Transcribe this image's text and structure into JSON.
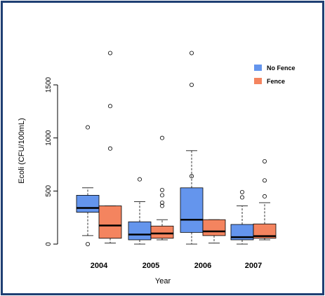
{
  "chart_data": {
    "type": "box",
    "xlabel": "Year",
    "ylabel": "Ecoli (CFU/100mL)",
    "ylim": [
      0,
      1800
    ],
    "yticks": [
      0,
      500,
      1000,
      1500
    ],
    "categories": [
      "2004",
      "2005",
      "2006",
      "2007"
    ],
    "series": [
      {
        "name": "No Fence",
        "color": "#6495ed",
        "boxes": [
          {
            "category": "2004",
            "whisker_low": 80,
            "q1": 300,
            "median": 340,
            "q3": 460,
            "whisker_high": 530,
            "outliers": [
              0,
              1100
            ]
          },
          {
            "category": "2005",
            "whisker_low": 0,
            "q1": 40,
            "median": 90,
            "q3": 210,
            "whisker_high": 400,
            "outliers": [
              610
            ]
          },
          {
            "category": "2006",
            "whisker_low": 0,
            "q1": 110,
            "median": 230,
            "q3": 530,
            "whisker_high": 880,
            "outliers": [
              640,
              1500,
              1800
            ]
          },
          {
            "category": "2007",
            "whisker_low": 0,
            "q1": 40,
            "median": 65,
            "q3": 185,
            "whisker_high": 360,
            "outliers": [
              440,
              490
            ]
          }
        ]
      },
      {
        "name": "Fence",
        "color": "#f4845f",
        "boxes": [
          {
            "category": "2004",
            "whisker_low": 10,
            "q1": 55,
            "median": 175,
            "q3": 360,
            "whisker_high": 360,
            "outliers": [
              900,
              1300,
              1800
            ]
          },
          {
            "category": "2005",
            "whisker_low": 40,
            "q1": 55,
            "median": 100,
            "q3": 170,
            "whisker_high": 230,
            "outliers": [
              360,
              390,
              460,
              510,
              1000
            ]
          },
          {
            "category": "2006",
            "whisker_low": 10,
            "q1": 80,
            "median": 120,
            "q3": 230,
            "whisker_high": 230,
            "outliers": []
          },
          {
            "category": "2007",
            "whisker_low": 40,
            "q1": 55,
            "median": 75,
            "q3": 190,
            "whisker_high": 390,
            "outliers": [
              450,
              600,
              780
            ]
          }
        ]
      }
    ],
    "legend": {
      "position": "top-right",
      "items": [
        "No Fence",
        "Fence"
      ]
    },
    "grid": false
  }
}
